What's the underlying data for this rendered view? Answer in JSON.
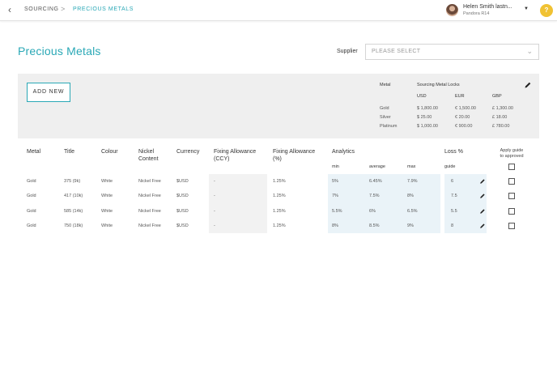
{
  "header": {
    "breadcrumb_root": "SOURCING",
    "breadcrumb_separator": ">",
    "breadcrumb_current": "PRECIOUS METALS",
    "user_name": "Helen Smith lastn...",
    "user_subtitle": "Pandora R14",
    "help_label": "?"
  },
  "page": {
    "title": "Precious Metals",
    "supplier_label": "Supplier",
    "supplier_placeholder": "PLEASE SELECT"
  },
  "panel": {
    "add_button": "ADD NEW",
    "locks_metal_header": "Metal",
    "locks_title": "Sourcing Metal Locks",
    "locks_columns": [
      "USD",
      "EUR",
      "GBP"
    ],
    "locks_rows": [
      {
        "metal": "Gold",
        "usd": "$ 1,800.00",
        "eur": "€ 1,500.00",
        "gbp": "£ 1,300.00"
      },
      {
        "metal": "Silver",
        "usd": "$ 25.00",
        "eur": "€ 20.00",
        "gbp": "£ 18.00"
      },
      {
        "metal": "Platinum",
        "usd": "$ 1,000.00",
        "eur": "€ 900.00",
        "gbp": "£ 780.00"
      }
    ]
  },
  "table": {
    "headers": {
      "metal": "Metal",
      "title": "Title",
      "colour": "Colour",
      "nickel_1": "Nickel",
      "nickel_2": "Content",
      "currency": "Currency",
      "fix_ccy_1": "Fixing Allowance",
      "fix_ccy_2": "(CCY)",
      "fix_pct_1": "Fixing Allowance",
      "fix_pct_2": "(%)",
      "analytics": "Analytics",
      "loss": "Loss %",
      "apply_1": "Apply guide",
      "apply_2": "to approved"
    },
    "subheaders": {
      "min": "min",
      "average": "average",
      "max": "max",
      "guide": "guide"
    },
    "rows": [
      {
        "metal": "Gold",
        "title": "375 (9k)",
        "colour": "White",
        "nickel": "Nickel Free",
        "currency": "$USD",
        "fix_ccy": "-",
        "fix_pct": "1.25%",
        "min": "5%",
        "average": "6.45%",
        "max": "7.9%",
        "guide": "6"
      },
      {
        "metal": "Gold",
        "title": "417 (10k)",
        "colour": "White",
        "nickel": "Nickel Free",
        "currency": "$USD",
        "fix_ccy": "-",
        "fix_pct": "1.25%",
        "min": "7%",
        "average": "7.5%",
        "max": "8%",
        "guide": "7.5"
      },
      {
        "metal": "Gold",
        "title": "585 (14k)",
        "colour": "White",
        "nickel": "Nickel Free",
        "currency": "$USD",
        "fix_ccy": "-",
        "fix_pct": "1.25%",
        "min": "5.5%",
        "average": "6%",
        "max": "6.5%",
        "guide": "5.5"
      },
      {
        "metal": "Gold",
        "title": "750 (18k)",
        "colour": "White",
        "nickel": "Nickel Free",
        "currency": "$USD",
        "fix_ccy": "-",
        "fix_pct": "1.25%",
        "min": "8%",
        "average": "8.5%",
        "max": "9%",
        "guide": "8"
      }
    ]
  },
  "colors": {
    "accent": "#2aa8b6",
    "help_badge": "#f0c233",
    "panel_bg": "#efefef",
    "analytics_bg": "#eaf3f8",
    "fixing_bg": "#f2f2f2"
  }
}
